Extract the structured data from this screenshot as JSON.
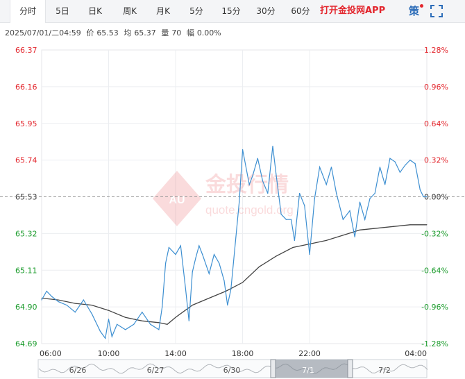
{
  "tabs": [
    "分时",
    "5日",
    "日K",
    "周K",
    "月K",
    "5分",
    "15分",
    "30分",
    "60分"
  ],
  "active_tab": 0,
  "promo": "打开金投网APP",
  "tools": {
    "strategy_icon": "策",
    "fullscreen_icon": "fullscreen-icon"
  },
  "info": {
    "datetime": "2025/07/01/二04:59",
    "price_label": "价",
    "price": "65.53",
    "avg_label": "均",
    "avg": "65.37",
    "vol_label": "量",
    "vol": "70",
    "chg_label": "幅",
    "chg": "0.00%"
  },
  "watermark": {
    "brand": "金投行情",
    "url": "quote.cngold.org",
    "logo": "AU"
  },
  "colors": {
    "up": "#e3262d",
    "down": "#1a9b2b",
    "price_line": "#3d8fd1",
    "avg_line": "#444444"
  },
  "navigator": {
    "labels": [
      "6/26",
      "6/27",
      "6/30",
      "7/1",
      "7/2"
    ],
    "selected": "7/1"
  },
  "chart_data": {
    "type": "line",
    "title": "",
    "reference": 65.53,
    "ylim": [
      64.69,
      66.37
    ],
    "y_ticks": [
      "66.37",
      "66.16",
      "65.95",
      "65.74",
      "65.53",
      "65.32",
      "65.11",
      "64.90",
      "64.69"
    ],
    "pct_ticks": [
      "1.28%",
      "0.96%",
      "0.64%",
      "0.32%",
      "0.00%",
      "-0.32%",
      "-0.64%",
      "-0.96%",
      "-1.28%"
    ],
    "x_ticks": [
      "06:00",
      "10:00",
      "14:00",
      "18:00",
      "22:00",
      "04:00"
    ],
    "x_tick_hours": [
      0,
      4,
      8,
      12,
      16,
      22
    ],
    "x_range_hours": [
      0,
      23
    ],
    "series": [
      {
        "kind": "price",
        "x": [
          0,
          0.3,
          0.6,
          1.0,
          1.5,
          2.0,
          2.5,
          3.0,
          3.5,
          3.8,
          4.0,
          4.2,
          4.5,
          5.0,
          5.5,
          6.0,
          6.5,
          7.0,
          7.2,
          7.4,
          7.6,
          8.0,
          8.3,
          8.6,
          8.8,
          9.0,
          9.2,
          9.4,
          9.6,
          10.0,
          10.3,
          10.6,
          10.9,
          11.1,
          11.3,
          11.6,
          11.8,
          12.0,
          12.2,
          12.4,
          12.6,
          12.9,
          13.2,
          13.5,
          13.8,
          14.0,
          14.3,
          14.6,
          14.9,
          15.1,
          15.4,
          15.7,
          16.0,
          16.3,
          16.6,
          17.0,
          17.3,
          17.6,
          18.0,
          18.4,
          18.7,
          19.0,
          19.3,
          19.6,
          19.9,
          20.2,
          20.5,
          20.8,
          21.1,
          21.4,
          21.7,
          22.0,
          22.3,
          22.6,
          22.8,
          23.0
        ],
        "y": [
          64.94,
          64.99,
          64.96,
          64.93,
          64.91,
          64.87,
          64.94,
          64.86,
          64.76,
          64.72,
          64.83,
          64.73,
          64.8,
          64.77,
          64.8,
          64.87,
          64.8,
          64.77,
          64.9,
          65.15,
          65.24,
          65.2,
          65.25,
          65.0,
          64.82,
          65.1,
          65.18,
          65.25,
          65.2,
          65.09,
          65.2,
          65.15,
          65.05,
          64.91,
          65.0,
          65.3,
          65.5,
          65.8,
          65.7,
          65.6,
          65.65,
          65.75,
          65.62,
          65.55,
          65.82,
          65.66,
          65.43,
          65.4,
          65.4,
          65.28,
          65.55,
          65.48,
          65.2,
          65.52,
          65.7,
          65.6,
          65.7,
          65.55,
          65.4,
          65.45,
          65.3,
          65.5,
          65.4,
          65.52,
          65.55,
          65.7,
          65.6,
          65.75,
          65.73,
          65.67,
          65.71,
          65.74,
          65.72,
          65.57,
          65.53,
          65.53
        ]
      },
      {
        "kind": "average",
        "x": [
          0,
          1,
          2,
          3,
          4,
          5,
          6,
          7,
          7.5,
          8,
          9,
          10,
          11,
          12,
          13,
          14,
          15,
          16,
          17,
          18,
          19,
          20,
          21,
          22,
          23
        ],
        "y": [
          64.95,
          64.94,
          64.92,
          64.91,
          64.88,
          64.84,
          64.82,
          64.81,
          64.8,
          64.84,
          64.91,
          64.95,
          64.99,
          65.04,
          65.13,
          65.19,
          65.24,
          65.26,
          65.28,
          65.31,
          65.34,
          65.35,
          65.36,
          65.37,
          65.37
        ]
      }
    ]
  }
}
